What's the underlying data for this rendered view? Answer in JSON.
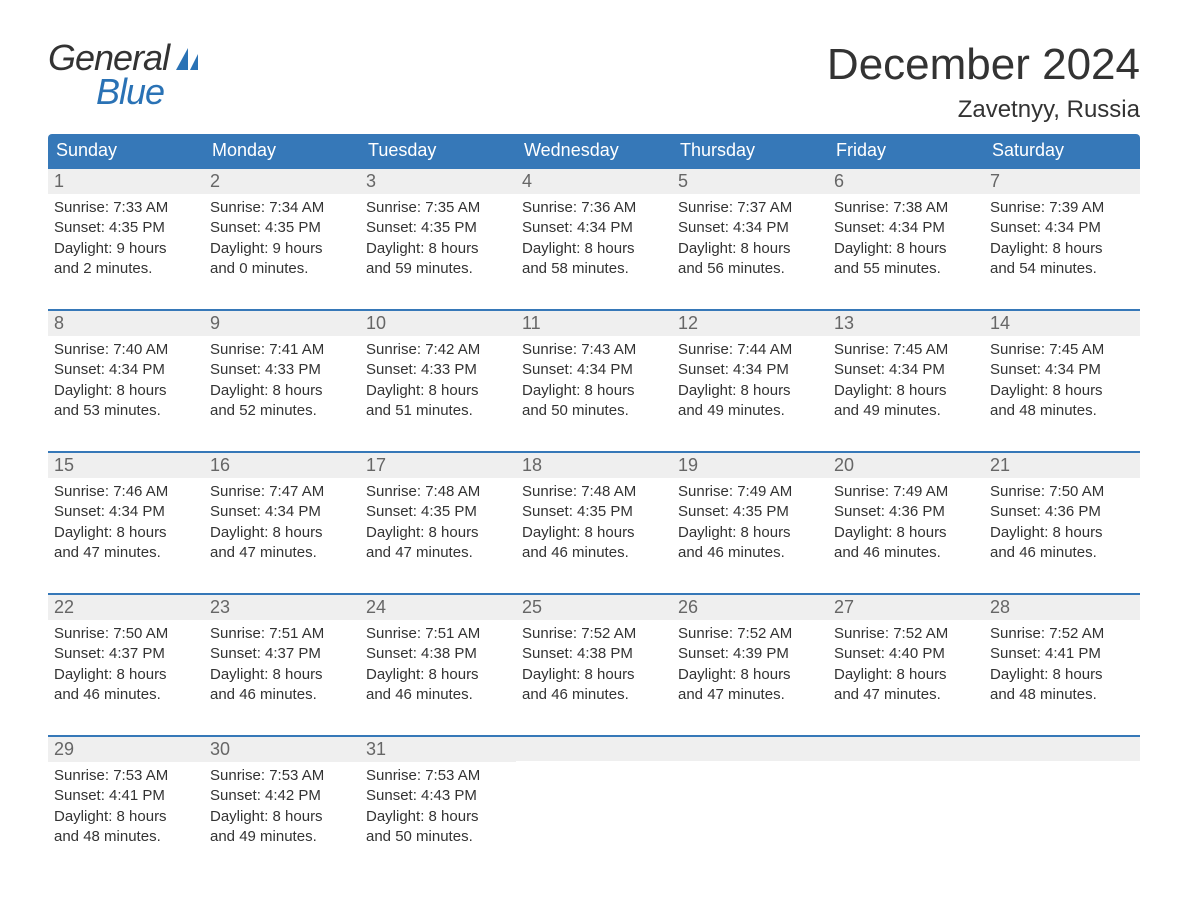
{
  "logo": {
    "text1": "General",
    "text2": "Blue"
  },
  "title": "December 2024",
  "location": "Zavetnyy, Russia",
  "colors": {
    "header_bg": "#3678b8",
    "header_text": "#ffffff",
    "daynum_bg": "#efefef",
    "daynum_text": "#666666",
    "body_text": "#333333",
    "accent": "#2a72b5",
    "border": "#3678b8",
    "background": "#ffffff"
  },
  "fonts": {
    "title_size": 44,
    "location_size": 24,
    "header_size": 18,
    "daynum_size": 18,
    "body_size": 15
  },
  "weekdays": [
    "Sunday",
    "Monday",
    "Tuesday",
    "Wednesday",
    "Thursday",
    "Friday",
    "Saturday"
  ],
  "weeks": [
    [
      {
        "n": "1",
        "sunrise": "Sunrise: 7:33 AM",
        "sunset": "Sunset: 4:35 PM",
        "d1": "Daylight: 9 hours",
        "d2": "and 2 minutes."
      },
      {
        "n": "2",
        "sunrise": "Sunrise: 7:34 AM",
        "sunset": "Sunset: 4:35 PM",
        "d1": "Daylight: 9 hours",
        "d2": "and 0 minutes."
      },
      {
        "n": "3",
        "sunrise": "Sunrise: 7:35 AM",
        "sunset": "Sunset: 4:35 PM",
        "d1": "Daylight: 8 hours",
        "d2": "and 59 minutes."
      },
      {
        "n": "4",
        "sunrise": "Sunrise: 7:36 AM",
        "sunset": "Sunset: 4:34 PM",
        "d1": "Daylight: 8 hours",
        "d2": "and 58 minutes."
      },
      {
        "n": "5",
        "sunrise": "Sunrise: 7:37 AM",
        "sunset": "Sunset: 4:34 PM",
        "d1": "Daylight: 8 hours",
        "d2": "and 56 minutes."
      },
      {
        "n": "6",
        "sunrise": "Sunrise: 7:38 AM",
        "sunset": "Sunset: 4:34 PM",
        "d1": "Daylight: 8 hours",
        "d2": "and 55 minutes."
      },
      {
        "n": "7",
        "sunrise": "Sunrise: 7:39 AM",
        "sunset": "Sunset: 4:34 PM",
        "d1": "Daylight: 8 hours",
        "d2": "and 54 minutes."
      }
    ],
    [
      {
        "n": "8",
        "sunrise": "Sunrise: 7:40 AM",
        "sunset": "Sunset: 4:34 PM",
        "d1": "Daylight: 8 hours",
        "d2": "and 53 minutes."
      },
      {
        "n": "9",
        "sunrise": "Sunrise: 7:41 AM",
        "sunset": "Sunset: 4:33 PM",
        "d1": "Daylight: 8 hours",
        "d2": "and 52 minutes."
      },
      {
        "n": "10",
        "sunrise": "Sunrise: 7:42 AM",
        "sunset": "Sunset: 4:33 PM",
        "d1": "Daylight: 8 hours",
        "d2": "and 51 minutes."
      },
      {
        "n": "11",
        "sunrise": "Sunrise: 7:43 AM",
        "sunset": "Sunset: 4:34 PM",
        "d1": "Daylight: 8 hours",
        "d2": "and 50 minutes."
      },
      {
        "n": "12",
        "sunrise": "Sunrise: 7:44 AM",
        "sunset": "Sunset: 4:34 PM",
        "d1": "Daylight: 8 hours",
        "d2": "and 49 minutes."
      },
      {
        "n": "13",
        "sunrise": "Sunrise: 7:45 AM",
        "sunset": "Sunset: 4:34 PM",
        "d1": "Daylight: 8 hours",
        "d2": "and 49 minutes."
      },
      {
        "n": "14",
        "sunrise": "Sunrise: 7:45 AM",
        "sunset": "Sunset: 4:34 PM",
        "d1": "Daylight: 8 hours",
        "d2": "and 48 minutes."
      }
    ],
    [
      {
        "n": "15",
        "sunrise": "Sunrise: 7:46 AM",
        "sunset": "Sunset: 4:34 PM",
        "d1": "Daylight: 8 hours",
        "d2": "and 47 minutes."
      },
      {
        "n": "16",
        "sunrise": "Sunrise: 7:47 AM",
        "sunset": "Sunset: 4:34 PM",
        "d1": "Daylight: 8 hours",
        "d2": "and 47 minutes."
      },
      {
        "n": "17",
        "sunrise": "Sunrise: 7:48 AM",
        "sunset": "Sunset: 4:35 PM",
        "d1": "Daylight: 8 hours",
        "d2": "and 47 minutes."
      },
      {
        "n": "18",
        "sunrise": "Sunrise: 7:48 AM",
        "sunset": "Sunset: 4:35 PM",
        "d1": "Daylight: 8 hours",
        "d2": "and 46 minutes."
      },
      {
        "n": "19",
        "sunrise": "Sunrise: 7:49 AM",
        "sunset": "Sunset: 4:35 PM",
        "d1": "Daylight: 8 hours",
        "d2": "and 46 minutes."
      },
      {
        "n": "20",
        "sunrise": "Sunrise: 7:49 AM",
        "sunset": "Sunset: 4:36 PM",
        "d1": "Daylight: 8 hours",
        "d2": "and 46 minutes."
      },
      {
        "n": "21",
        "sunrise": "Sunrise: 7:50 AM",
        "sunset": "Sunset: 4:36 PM",
        "d1": "Daylight: 8 hours",
        "d2": "and 46 minutes."
      }
    ],
    [
      {
        "n": "22",
        "sunrise": "Sunrise: 7:50 AM",
        "sunset": "Sunset: 4:37 PM",
        "d1": "Daylight: 8 hours",
        "d2": "and 46 minutes."
      },
      {
        "n": "23",
        "sunrise": "Sunrise: 7:51 AM",
        "sunset": "Sunset: 4:37 PM",
        "d1": "Daylight: 8 hours",
        "d2": "and 46 minutes."
      },
      {
        "n": "24",
        "sunrise": "Sunrise: 7:51 AM",
        "sunset": "Sunset: 4:38 PM",
        "d1": "Daylight: 8 hours",
        "d2": "and 46 minutes."
      },
      {
        "n": "25",
        "sunrise": "Sunrise: 7:52 AM",
        "sunset": "Sunset: 4:38 PM",
        "d1": "Daylight: 8 hours",
        "d2": "and 46 minutes."
      },
      {
        "n": "26",
        "sunrise": "Sunrise: 7:52 AM",
        "sunset": "Sunset: 4:39 PM",
        "d1": "Daylight: 8 hours",
        "d2": "and 47 minutes."
      },
      {
        "n": "27",
        "sunrise": "Sunrise: 7:52 AM",
        "sunset": "Sunset: 4:40 PM",
        "d1": "Daylight: 8 hours",
        "d2": "and 47 minutes."
      },
      {
        "n": "28",
        "sunrise": "Sunrise: 7:52 AM",
        "sunset": "Sunset: 4:41 PM",
        "d1": "Daylight: 8 hours",
        "d2": "and 48 minutes."
      }
    ],
    [
      {
        "n": "29",
        "sunrise": "Sunrise: 7:53 AM",
        "sunset": "Sunset: 4:41 PM",
        "d1": "Daylight: 8 hours",
        "d2": "and 48 minutes."
      },
      {
        "n": "30",
        "sunrise": "Sunrise: 7:53 AM",
        "sunset": "Sunset: 4:42 PM",
        "d1": "Daylight: 8 hours",
        "d2": "and 49 minutes."
      },
      {
        "n": "31",
        "sunrise": "Sunrise: 7:53 AM",
        "sunset": "Sunset: 4:43 PM",
        "d1": "Daylight: 8 hours",
        "d2": "and 50 minutes."
      },
      null,
      null,
      null,
      null
    ]
  ]
}
